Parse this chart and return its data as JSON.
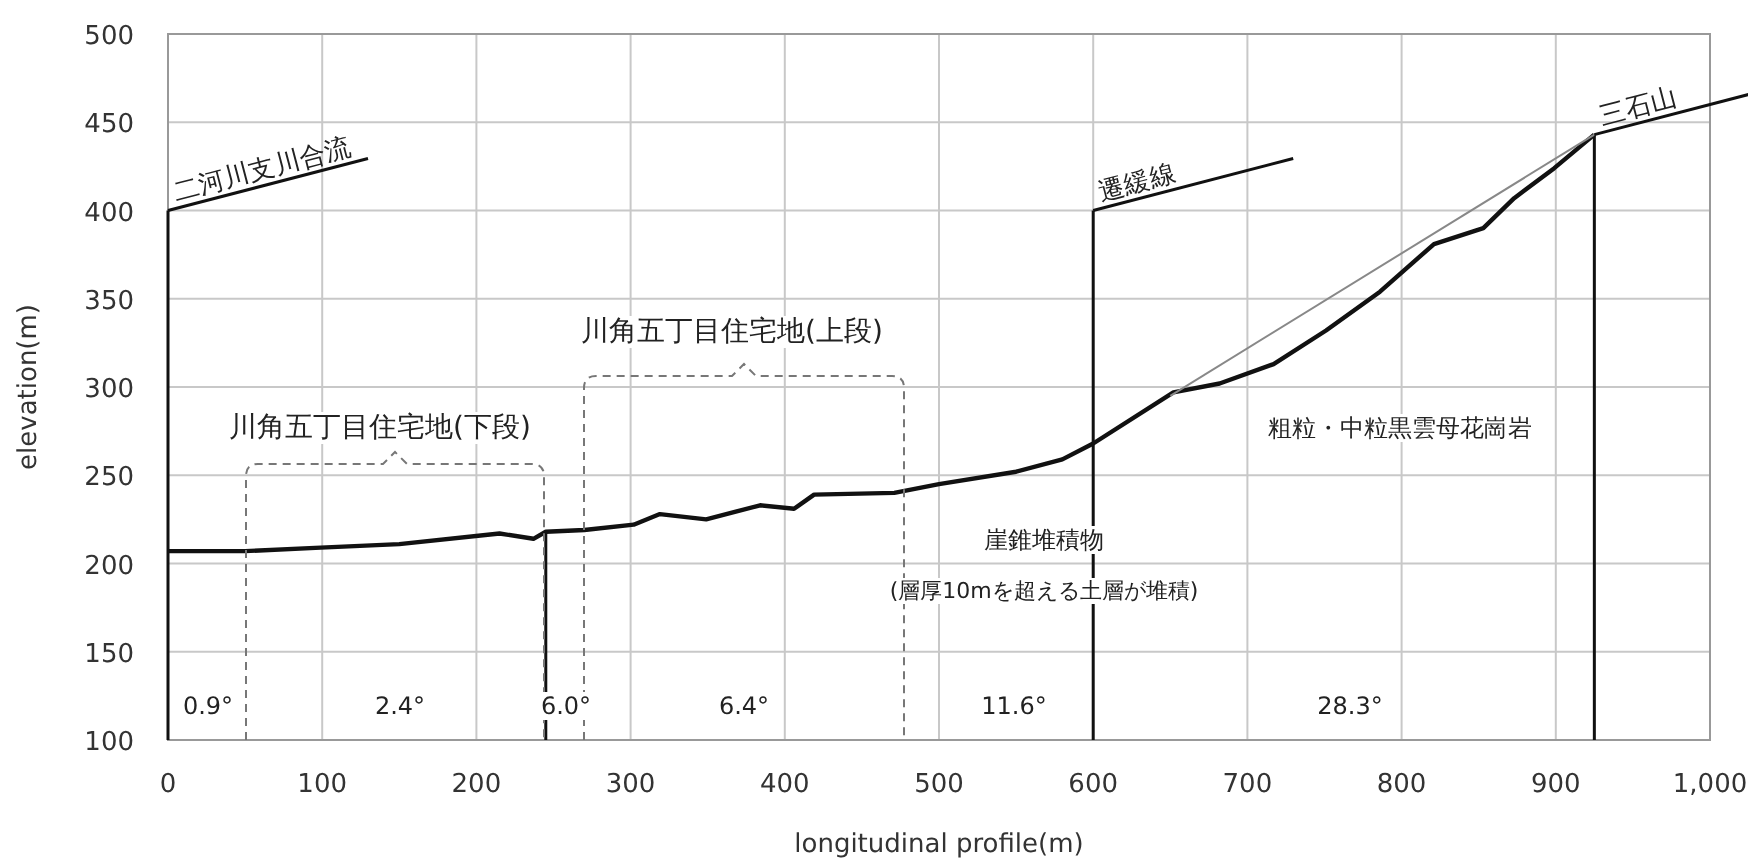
{
  "chart_data": {
    "type": "line",
    "xlabel": "longitudinal profile(m)",
    "ylabel": "elevation(m)",
    "xlim": [
      0,
      1000
    ],
    "ylim": [
      100,
      500
    ],
    "xticks": [
      0,
      100,
      200,
      300,
      400,
      500,
      600,
      700,
      800,
      900,
      {
        "value": 1000,
        "label": "1,000"
      }
    ],
    "yticks": [
      100,
      150,
      200,
      250,
      300,
      350,
      400,
      450,
      500
    ],
    "grid": true,
    "marker": "none",
    "line_style": "solid",
    "series": [
      {
        "color": "#111111",
        "x": [
          0,
          50,
          99,
          150,
          215,
          237,
          245,
          270,
          302,
          319,
          349,
          384,
          406,
          419,
          471,
          500,
          550,
          580,
          600,
          652,
          682,
          717,
          751,
          786,
          821,
          853,
          873,
          899,
          925
        ],
        "values": [
          207,
          207,
          209,
          211,
          217,
          214,
          218,
          219,
          222,
          228,
          225,
          233,
          231,
          239,
          240,
          245,
          252,
          259,
          268,
          297,
          302,
          313,
          332,
          354,
          381,
          390,
          407,
          424,
          443
        ]
      },
      {
        "color": "#888888",
        "x": [
          650,
          925
        ],
        "values": [
          295,
          443
        ]
      }
    ],
    "ref_lines": [
      {
        "axis": "x",
        "value": 0,
        "color": "#111111"
      },
      {
        "axis": "x",
        "value": 245,
        "color": "#111111"
      },
      {
        "axis": "x",
        "value": 600,
        "color": "#111111"
      },
      {
        "axis": "x",
        "value": 925,
        "color": "#111111"
      }
    ],
    "annotations": [
      {
        "text": "二河川支川合流",
        "x": 0,
        "y": 400
      },
      {
        "text": "遷緩線",
        "x": 600,
        "y": 400
      },
      {
        "text": "三石山",
        "x": 925,
        "y": 443
      },
      "川角五丁目住宅地(下段)",
      "川角五丁目住宅地(上段)",
      "粗粒・中粒黒雲母花崗岩",
      "崖錐堆積物",
      "(層厚10mを超える土層が堆積)",
      "0.9°",
      "2.4°",
      "6.0°",
      "6.4°",
      "11.6°",
      "28.3°"
    ]
  }
}
